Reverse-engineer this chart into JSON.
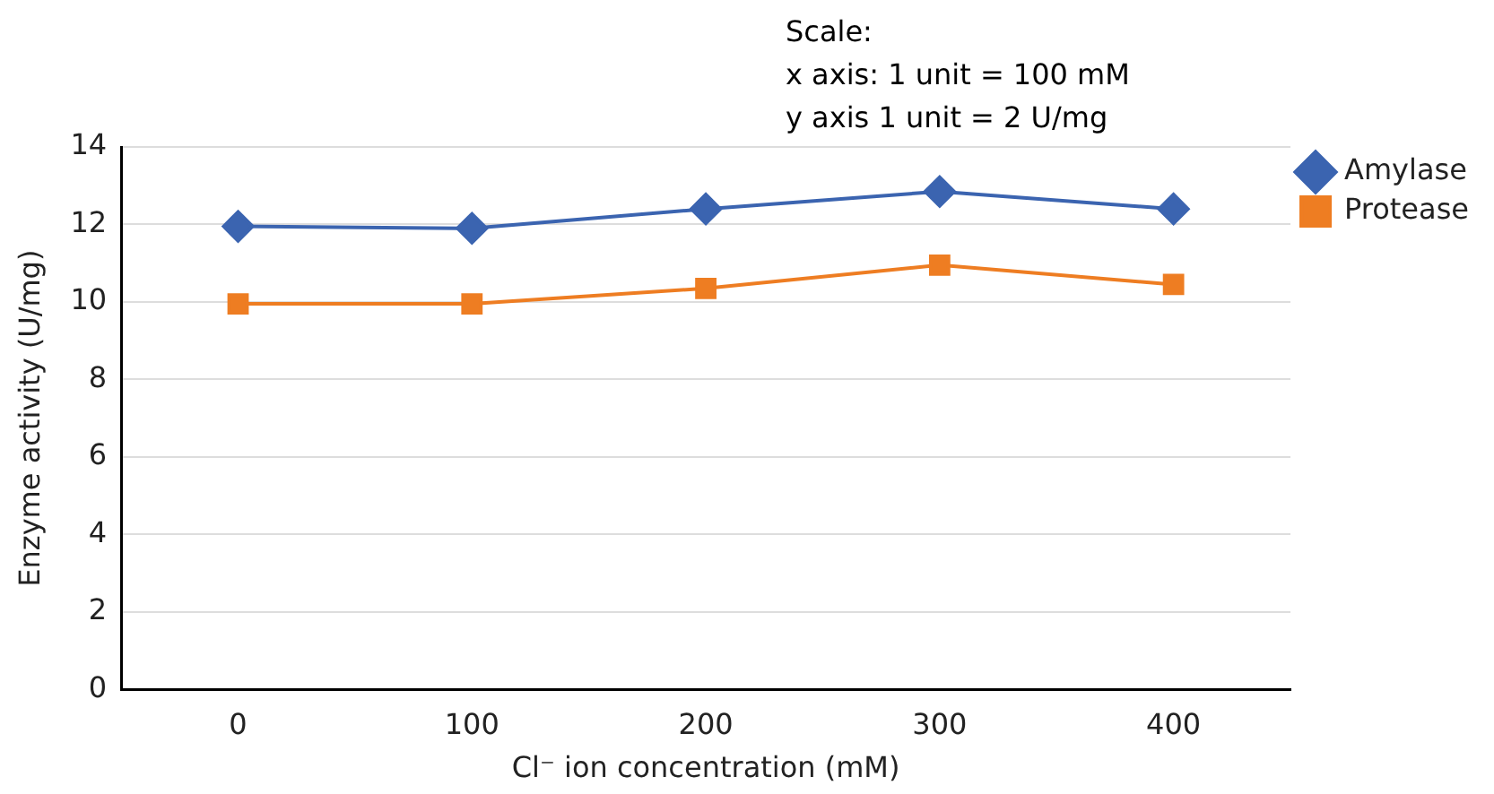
{
  "chart_data": {
    "type": "line",
    "xlabel": "Cl⁻ ion concentration (mM)",
    "ylabel": "Enzyme activity (U/mg)",
    "annotations": [
      "Scale:",
      "x axis: 1 unit = 100 mM",
      "y axis 1 unit = 2 U/mg"
    ],
    "categories": [
      "0",
      "100",
      "200",
      "300",
      "400"
    ],
    "series": [
      {
        "name": "Amylase",
        "color": "#3b64b0",
        "marker": "diamond",
        "values": [
          11.95,
          11.9,
          12.4,
          12.85,
          12.4
        ]
      },
      {
        "name": "Protease",
        "color": "#ee7d22",
        "marker": "square",
        "values": [
          9.95,
          9.95,
          10.35,
          10.95,
          10.45
        ]
      }
    ],
    "ylim": [
      0,
      14
    ],
    "yticks": [
      0,
      2,
      4,
      6,
      8,
      10,
      12,
      14
    ],
    "grid": "y",
    "legend": "top right"
  }
}
